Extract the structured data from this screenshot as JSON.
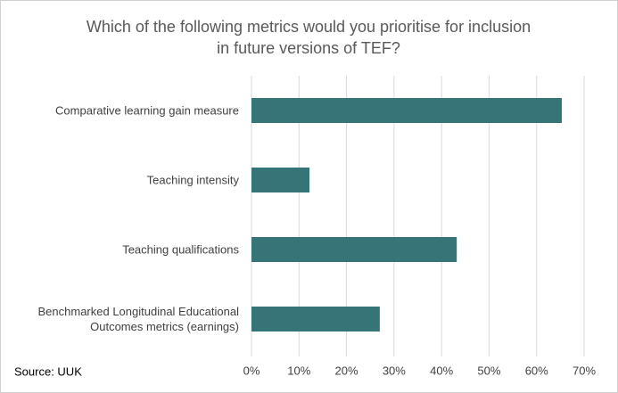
{
  "chart_data": {
    "type": "hbar",
    "title": [
      "Which of the following metrics would you prioritise for inclusion",
      "in future versions of TEF?"
    ],
    "categories": [
      "Comparative learning gain measure",
      "Teaching intensity",
      "Teaching qualifications",
      "Benchmarked Longitudinal Educational Outcomes metrics (earnings)"
    ],
    "values": [
      65.3,
      12.2,
      43.2,
      27.0
    ],
    "color": "#357577",
    "xlim": [
      0,
      70
    ],
    "xticks": [
      {
        "value": 0,
        "label": "0%"
      },
      {
        "value": 10,
        "label": "10%"
      },
      {
        "value": 20,
        "label": "20%"
      },
      {
        "value": 30,
        "label": "30%"
      },
      {
        "value": 40,
        "label": "40%"
      },
      {
        "value": 50,
        "label": "50%"
      },
      {
        "value": 60,
        "label": "60%"
      },
      {
        "value": 70,
        "label": "70%"
      }
    ],
    "grid": true,
    "source": "Source: UUK"
  }
}
